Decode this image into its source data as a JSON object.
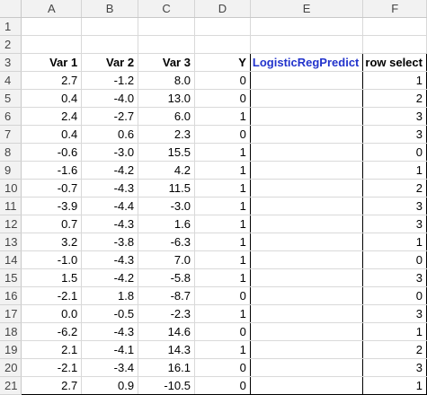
{
  "columns": [
    "A",
    "B",
    "C",
    "D",
    "E",
    "F"
  ],
  "empty_rows": [
    "1",
    "2"
  ],
  "header_row": {
    "row_number": "3",
    "cells": [
      "Var 1",
      "Var 2",
      "Var 3",
      "Y",
      "LogisticRegPredict",
      "row select"
    ]
  },
  "rows": [
    {
      "n": "4",
      "a": "2.7",
      "b": "-1.2",
      "c": "8.0",
      "y": "0",
      "e": "",
      "f": "1"
    },
    {
      "n": "5",
      "a": "0.4",
      "b": "-4.0",
      "c": "13.0",
      "y": "0",
      "e": "",
      "f": "2"
    },
    {
      "n": "6",
      "a": "2.4",
      "b": "-2.7",
      "c": "6.0",
      "y": "1",
      "e": "",
      "f": "3"
    },
    {
      "n": "7",
      "a": "0.4",
      "b": "0.6",
      "c": "2.3",
      "y": "0",
      "e": "",
      "f": "3"
    },
    {
      "n": "8",
      "a": "-0.6",
      "b": "-3.0",
      "c": "15.5",
      "y": "1",
      "e": "",
      "f": "0"
    },
    {
      "n": "9",
      "a": "-1.6",
      "b": "-4.2",
      "c": "4.2",
      "y": "1",
      "e": "",
      "f": "1"
    },
    {
      "n": "10",
      "a": "-0.7",
      "b": "-4.3",
      "c": "11.5",
      "y": "1",
      "e": "",
      "f": "2"
    },
    {
      "n": "11",
      "a": "-3.9",
      "b": "-4.4",
      "c": "-3.0",
      "y": "1",
      "e": "",
      "f": "3"
    },
    {
      "n": "12",
      "a": "0.7",
      "b": "-4.3",
      "c": "1.6",
      "y": "1",
      "e": "",
      "f": "3"
    },
    {
      "n": "13",
      "a": "3.2",
      "b": "-3.8",
      "c": "-6.3",
      "y": "1",
      "e": "",
      "f": "1"
    },
    {
      "n": "14",
      "a": "-1.0",
      "b": "-4.3",
      "c": "7.0",
      "y": "1",
      "e": "",
      "f": "0"
    },
    {
      "n": "15",
      "a": "1.5",
      "b": "-4.2",
      "c": "-5.8",
      "y": "1",
      "e": "",
      "f": "3"
    },
    {
      "n": "16",
      "a": "-2.1",
      "b": "1.8",
      "c": "-8.7",
      "y": "0",
      "e": "",
      "f": "0"
    },
    {
      "n": "17",
      "a": "0.0",
      "b": "-0.5",
      "c": "-2.3",
      "y": "1",
      "e": "",
      "f": "3"
    },
    {
      "n": "18",
      "a": "-6.2",
      "b": "-4.3",
      "c": "14.6",
      "y": "0",
      "e": "",
      "f": "1"
    },
    {
      "n": "19",
      "a": "2.1",
      "b": "-4.1",
      "c": "14.3",
      "y": "1",
      "e": "",
      "f": "2"
    },
    {
      "n": "20",
      "a": "-2.1",
      "b": "-3.4",
      "c": "16.1",
      "y": "0",
      "e": "",
      "f": "3"
    },
    {
      "n": "21",
      "a": "2.7",
      "b": "0.9",
      "c": "-10.5",
      "y": "0",
      "e": "",
      "f": "1"
    }
  ]
}
